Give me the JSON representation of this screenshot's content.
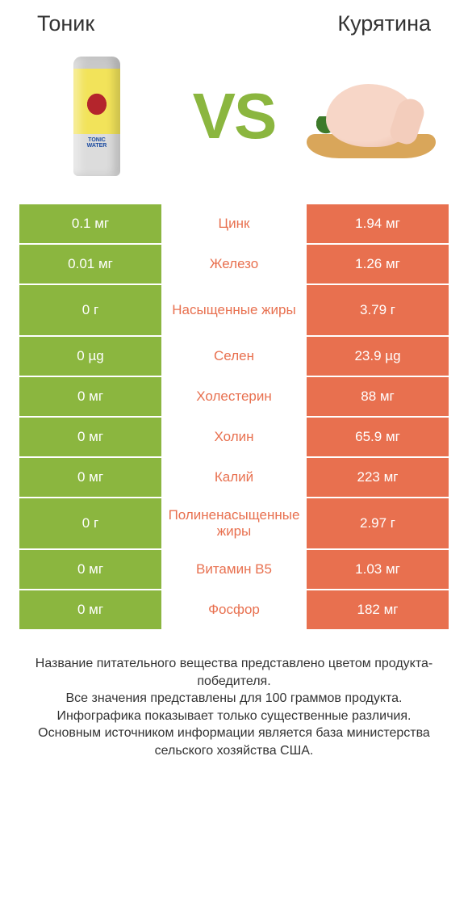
{
  "colors": {
    "left_bar": "#8bb63f",
    "right_bar": "#e8704f",
    "mid_text_left_winner": "#8bb63f",
    "mid_text_right_winner": "#e8704f",
    "vs": "#8bb63f",
    "background": "#ffffff",
    "text": "#333333"
  },
  "header": {
    "left_title": "Тоник",
    "right_title": "Курятина",
    "vs_label": "VS"
  },
  "products": {
    "left_can_line1": "TONIC",
    "left_can_line2": "WATER"
  },
  "rows": [
    {
      "left": "0.1 мг",
      "label": "Цинк",
      "right": "1.94 мг",
      "winner": "right",
      "tall": false
    },
    {
      "left": "0.01 мг",
      "label": "Железо",
      "right": "1.26 мг",
      "winner": "right",
      "tall": false
    },
    {
      "left": "0 г",
      "label": "Насыщенные жиры",
      "right": "3.79 г",
      "winner": "right",
      "tall": true
    },
    {
      "left": "0 µg",
      "label": "Селен",
      "right": "23.9 µg",
      "winner": "right",
      "tall": false
    },
    {
      "left": "0 мг",
      "label": "Холестерин",
      "right": "88 мг",
      "winner": "right",
      "tall": false
    },
    {
      "left": "0 мг",
      "label": "Холин",
      "right": "65.9 мг",
      "winner": "right",
      "tall": false
    },
    {
      "left": "0 мг",
      "label": "Калий",
      "right": "223 мг",
      "winner": "right",
      "tall": false
    },
    {
      "left": "0 г",
      "label": "Полиненасыщенные жиры",
      "right": "2.97 г",
      "winner": "right",
      "tall": true
    },
    {
      "left": "0 мг",
      "label": "Витамин B5",
      "right": "1.03 мг",
      "winner": "right",
      "tall": false
    },
    {
      "left": "0 мг",
      "label": "Фосфор",
      "right": "182 мг",
      "winner": "right",
      "tall": false
    }
  ],
  "footer": {
    "line1": "Название питательного вещества представлено цветом продукта-победителя.",
    "line2": "Все значения представлены для 100 граммов продукта.",
    "line3": "Инфографика показывает только существенные различия.",
    "line4": "Основным источником информации является база министерства сельского хозяйства США."
  }
}
